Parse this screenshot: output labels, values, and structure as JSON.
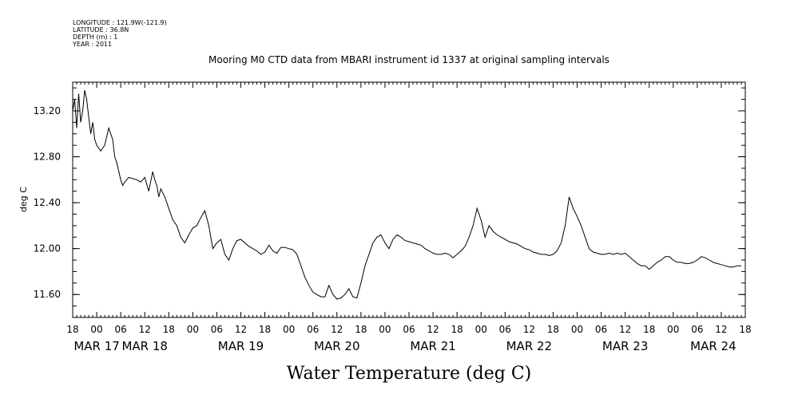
{
  "header": {
    "lines": [
      "LONGITUDE : 121.9W(-121.9)",
      "LATITUDE : 36.8N",
      "DEPTH (m) : 1",
      "YEAR : 2011"
    ]
  },
  "chart_data": {
    "type": "line",
    "title": "Mooring M0 CTD data from MBARI instrument id 1337 at original sampling intervals",
    "xlabel": "Water Temperature (deg C)",
    "ylabel": "deg C",
    "ylim": [
      11.4,
      13.45
    ],
    "xlim": [
      0,
      168
    ],
    "x_unit": "hours since MAR 16 18:00",
    "y_ticks": [
      "11.60",
      "12.00",
      "12.40",
      "12.80",
      "13.20"
    ],
    "hour_ticks": [
      "18",
      "00",
      "06",
      "12",
      "18",
      "00",
      "06",
      "12",
      "18",
      "00",
      "06",
      "12",
      "18",
      "00",
      "06",
      "12",
      "18",
      "00",
      "06",
      "12",
      "18",
      "00",
      "06",
      "12",
      "18",
      "00",
      "06",
      "12",
      "18"
    ],
    "date_labels": [
      "MAR 17",
      "MAR 18",
      "MAR 19",
      "MAR 20",
      "MAR 21",
      "MAR 22",
      "MAR 23",
      "MAR 24"
    ],
    "date_label_hours": [
      6,
      18,
      42,
      66,
      90,
      114,
      138,
      160
    ],
    "series": [
      {
        "x": [
          0,
          0.5,
          1,
          1.5,
          2,
          2.5,
          3,
          3.5,
          4,
          4.5,
          5,
          5.5,
          6,
          7,
          8,
          9,
          10,
          10.5,
          11,
          12,
          12.5,
          13,
          13.5,
          14,
          15,
          16,
          17,
          18,
          19,
          20,
          20.5,
          21,
          21.5,
          22,
          23,
          24,
          25,
          26,
          27,
          28,
          29,
          29.5,
          30,
          31,
          32,
          33,
          34,
          35,
          36,
          37,
          38,
          39,
          40,
          41,
          42,
          43,
          44,
          45,
          46,
          47,
          48,
          49,
          50,
          51,
          52,
          53,
          54,
          55,
          56,
          57,
          58,
          59,
          60,
          61,
          62,
          63,
          64,
          65,
          66,
          67,
          68,
          69,
          70,
          71,
          72,
          73,
          74,
          75,
          76,
          77,
          78,
          79,
          80,
          81,
          82,
          83,
          84,
          85,
          86,
          87,
          88,
          89,
          90,
          91,
          92,
          93,
          94,
          95,
          96,
          97,
          98,
          99,
          100,
          101,
          102,
          103,
          104,
          105,
          106,
          107,
          108,
          109,
          110,
          111,
          112,
          113,
          114,
          115,
          116,
          117,
          118,
          119,
          120,
          121,
          122,
          123,
          124,
          125,
          126,
          127,
          128,
          129,
          130,
          131,
          132,
          133,
          134,
          135,
          136,
          137,
          138,
          139,
          140,
          141,
          142,
          143,
          144,
          145,
          146,
          147,
          148,
          149,
          150,
          151,
          152,
          153,
          154,
          155,
          156,
          157,
          158,
          159,
          160,
          161,
          162,
          163,
          164,
          165,
          166,
          167
        ],
        "y": [
          13.2,
          13.3,
          13.05,
          13.35,
          13.1,
          13.2,
          13.38,
          13.3,
          13.15,
          13.0,
          13.1,
          12.95,
          12.9,
          12.85,
          12.9,
          13.05,
          12.95,
          12.8,
          12.75,
          12.6,
          12.55,
          12.58,
          12.6,
          12.62,
          12.61,
          12.6,
          12.58,
          12.62,
          12.5,
          12.67,
          12.6,
          12.55,
          12.45,
          12.52,
          12.45,
          12.35,
          12.25,
          12.2,
          12.1,
          12.05,
          12.12,
          12.15,
          12.18,
          12.2,
          12.27,
          12.33,
          12.2,
          12.0,
          12.05,
          12.08,
          11.95,
          11.9,
          12.0,
          12.07,
          12.08,
          12.05,
          12.02,
          12.0,
          11.98,
          11.95,
          11.97,
          12.03,
          11.98,
          11.96,
          12.01,
          12.01,
          12.0,
          11.99,
          11.95,
          11.85,
          11.75,
          11.68,
          11.62,
          11.6,
          11.58,
          11.58,
          11.68,
          11.6,
          11.56,
          11.57,
          11.6,
          11.65,
          11.58,
          11.57,
          11.7,
          11.85,
          11.95,
          12.05,
          12.1,
          12.12,
          12.05,
          12.0,
          12.08,
          12.12,
          12.1,
          12.07,
          12.06,
          12.05,
          12.04,
          12.03,
          12.0,
          11.98,
          11.96,
          11.95,
          11.95,
          11.96,
          11.95,
          11.92,
          11.95,
          11.98,
          12.02,
          12.1,
          12.2,
          12.35,
          12.25,
          12.1,
          12.2,
          12.15,
          12.12,
          12.1,
          12.08,
          12.06,
          12.05,
          12.04,
          12.02,
          12.0,
          11.99,
          11.97,
          11.96,
          11.95,
          11.95,
          11.94,
          11.95,
          11.98,
          12.05,
          12.2,
          12.45,
          12.35,
          12.28,
          12.2,
          12.1,
          12.0,
          11.97,
          11.96,
          11.95,
          11.95,
          11.96,
          11.95,
          11.96,
          11.95,
          11.96,
          11.93,
          11.9,
          11.87,
          11.85,
          11.85,
          11.82,
          11.85,
          11.88,
          11.9,
          11.93,
          11.93,
          11.9,
          11.88,
          11.88,
          11.87,
          11.87,
          11.88,
          11.9,
          11.93,
          11.92,
          11.9,
          11.88,
          11.87,
          11.86,
          11.85,
          11.84,
          11.84,
          11.85,
          11.85
        ]
      }
    ]
  }
}
